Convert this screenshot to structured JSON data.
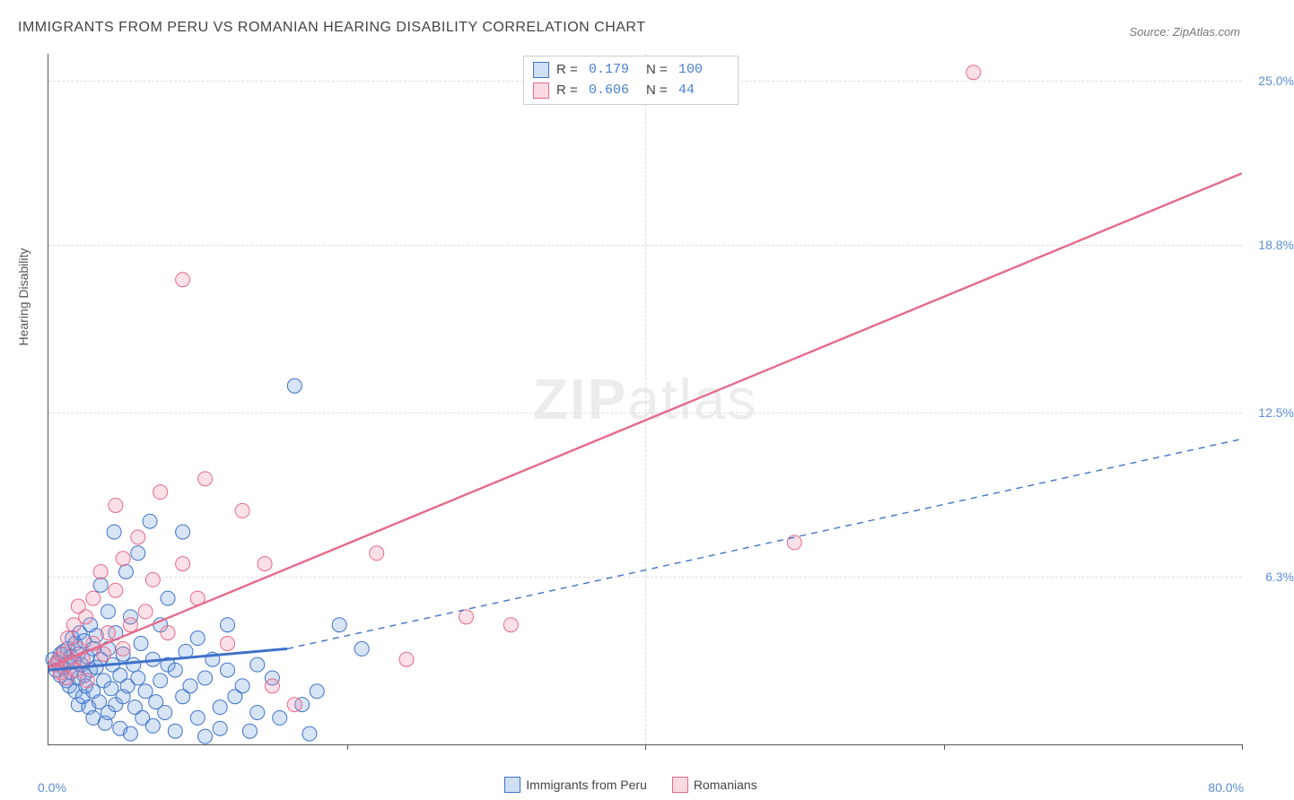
{
  "title": "IMMIGRANTS FROM PERU VS ROMANIAN HEARING DISABILITY CORRELATION CHART",
  "source": "Source: ZipAtlas.com",
  "watermark_a": "ZIP",
  "watermark_b": "atlas",
  "y_axis_title": "Hearing Disability",
  "x_origin": "0.0%",
  "x_max": "80.0%",
  "chart": {
    "type": "scatter",
    "xlim": [
      0,
      80
    ],
    "ylim": [
      0,
      26
    ],
    "y_ticks": [
      {
        "v": 6.3,
        "label": "6.3%"
      },
      {
        "v": 12.5,
        "label": "12.5%"
      },
      {
        "v": 18.8,
        "label": "18.8%"
      },
      {
        "v": 25.0,
        "label": "25.0%"
      }
    ],
    "x_tick_positions": [
      20,
      40,
      60,
      80
    ],
    "x_gridlines_at": [
      40
    ],
    "background_color": "#ffffff",
    "grid_color": "#dddddd",
    "marker_radius": 8,
    "marker_fill_opacity": 0.28,
    "series": [
      {
        "id": "peru",
        "label": "Immigrants from Peru",
        "fill": "#6f9ede",
        "stroke": "#3f72c9",
        "R": "0.179",
        "N": "100",
        "trend": {
          "x1": 0,
          "y1": 2.8,
          "x2": 16,
          "y2": 3.6,
          "dashed_to_x": 80,
          "dashed_to_y": 11.5,
          "width_solid": 3,
          "width_dashed": 1.4
        },
        "points": [
          [
            0.3,
            3.2
          ],
          [
            0.5,
            2.8
          ],
          [
            0.6,
            3.1
          ],
          [
            0.8,
            2.6
          ],
          [
            0.8,
            3.4
          ],
          [
            1.0,
            2.9
          ],
          [
            1.0,
            3.5
          ],
          [
            1.2,
            2.4
          ],
          [
            1.2,
            3.0
          ],
          [
            1.3,
            3.6
          ],
          [
            1.4,
            2.2
          ],
          [
            1.5,
            3.3
          ],
          [
            1.5,
            2.7
          ],
          [
            1.6,
            4.0
          ],
          [
            1.7,
            3.1
          ],
          [
            1.8,
            2.0
          ],
          [
            1.8,
            3.8
          ],
          [
            2.0,
            2.5
          ],
          [
            2.0,
            3.4
          ],
          [
            2.0,
            1.5
          ],
          [
            2.1,
            4.2
          ],
          [
            2.2,
            3.0
          ],
          [
            2.3,
            1.8
          ],
          [
            2.4,
            2.6
          ],
          [
            2.4,
            3.9
          ],
          [
            2.5,
            2.2
          ],
          [
            2.6,
            3.3
          ],
          [
            2.7,
            1.4
          ],
          [
            2.8,
            4.5
          ],
          [
            2.8,
            2.8
          ],
          [
            3.0,
            3.6
          ],
          [
            3.0,
            1.0
          ],
          [
            3.0,
            2.0
          ],
          [
            3.2,
            2.9
          ],
          [
            3.2,
            4.1
          ],
          [
            3.4,
            1.6
          ],
          [
            3.5,
            3.2
          ],
          [
            3.5,
            6.0
          ],
          [
            3.7,
            2.4
          ],
          [
            3.8,
            0.8
          ],
          [
            4.0,
            3.6
          ],
          [
            4.0,
            1.2
          ],
          [
            4.0,
            5.0
          ],
          [
            4.2,
            2.1
          ],
          [
            4.3,
            3.0
          ],
          [
            4.4,
            8.0
          ],
          [
            4.5,
            1.5
          ],
          [
            4.5,
            4.2
          ],
          [
            4.8,
            0.6
          ],
          [
            4.8,
            2.6
          ],
          [
            5.0,
            3.4
          ],
          [
            5.0,
            1.8
          ],
          [
            5.2,
            6.5
          ],
          [
            5.3,
            2.2
          ],
          [
            5.5,
            0.4
          ],
          [
            5.5,
            4.8
          ],
          [
            5.7,
            3.0
          ],
          [
            5.8,
            1.4
          ],
          [
            6.0,
            2.5
          ],
          [
            6.0,
            7.2
          ],
          [
            6.2,
            3.8
          ],
          [
            6.3,
            1.0
          ],
          [
            6.5,
            2.0
          ],
          [
            6.8,
            8.4
          ],
          [
            7.0,
            3.2
          ],
          [
            7.0,
            0.7
          ],
          [
            7.2,
            1.6
          ],
          [
            7.5,
            4.5
          ],
          [
            7.5,
            2.4
          ],
          [
            7.8,
            1.2
          ],
          [
            8.0,
            3.0
          ],
          [
            8.0,
            5.5
          ],
          [
            8.5,
            2.8
          ],
          [
            8.5,
            0.5
          ],
          [
            9.0,
            8.0
          ],
          [
            9.0,
            1.8
          ],
          [
            9.2,
            3.5
          ],
          [
            9.5,
            2.2
          ],
          [
            10.0,
            1.0
          ],
          [
            10.0,
            4.0
          ],
          [
            10.5,
            2.5
          ],
          [
            10.5,
            0.3
          ],
          [
            11.0,
            3.2
          ],
          [
            11.5,
            1.4
          ],
          [
            11.5,
            0.6
          ],
          [
            12.0,
            2.8
          ],
          [
            12.0,
            4.5
          ],
          [
            12.5,
            1.8
          ],
          [
            13.0,
            2.2
          ],
          [
            13.5,
            0.5
          ],
          [
            14.0,
            1.2
          ],
          [
            14.0,
            3.0
          ],
          [
            15.0,
            2.5
          ],
          [
            15.5,
            1.0
          ],
          [
            16.5,
            13.5
          ],
          [
            17.0,
            1.5
          ],
          [
            17.5,
            0.4
          ],
          [
            18.0,
            2.0
          ],
          [
            19.5,
            4.5
          ],
          [
            21.0,
            3.6
          ]
        ]
      },
      {
        "id": "romanians",
        "label": "Romanians",
        "fill": "#f090a8",
        "stroke": "#e56a8a",
        "R": "0.606",
        "N": "44",
        "trend": {
          "x1": 0,
          "y1": 2.9,
          "x2": 80,
          "y2": 21.5,
          "width_solid": 2.4
        },
        "points": [
          [
            0.5,
            3.0
          ],
          [
            0.7,
            3.2
          ],
          [
            0.8,
            2.7
          ],
          [
            1.0,
            3.4
          ],
          [
            1.2,
            2.5
          ],
          [
            1.3,
            4.0
          ],
          [
            1.5,
            3.1
          ],
          [
            1.7,
            4.5
          ],
          [
            1.8,
            2.8
          ],
          [
            2.0,
            3.6
          ],
          [
            2.0,
            5.2
          ],
          [
            2.3,
            3.2
          ],
          [
            2.5,
            4.8
          ],
          [
            2.6,
            2.4
          ],
          [
            3.0,
            5.5
          ],
          [
            3.0,
            3.8
          ],
          [
            3.5,
            6.5
          ],
          [
            3.7,
            3.4
          ],
          [
            4.0,
            4.2
          ],
          [
            4.5,
            5.8
          ],
          [
            4.5,
            9.0
          ],
          [
            5.0,
            3.6
          ],
          [
            5.0,
            7.0
          ],
          [
            5.5,
            4.5
          ],
          [
            6.0,
            7.8
          ],
          [
            6.5,
            5.0
          ],
          [
            7.0,
            6.2
          ],
          [
            7.5,
            9.5
          ],
          [
            8.0,
            4.2
          ],
          [
            9.0,
            6.8
          ],
          [
            9.0,
            17.5
          ],
          [
            10.0,
            5.5
          ],
          [
            10.5,
            10.0
          ],
          [
            12.0,
            3.8
          ],
          [
            13.0,
            8.8
          ],
          [
            14.5,
            6.8
          ],
          [
            15.0,
            2.2
          ],
          [
            16.5,
            1.5
          ],
          [
            22.0,
            7.2
          ],
          [
            24.0,
            3.2
          ],
          [
            28.0,
            4.8
          ],
          [
            31.0,
            4.5
          ],
          [
            50.0,
            7.6
          ],
          [
            62.0,
            25.3
          ]
        ]
      }
    ]
  },
  "top_legend_labels": {
    "R": "R =",
    "N": "N ="
  }
}
